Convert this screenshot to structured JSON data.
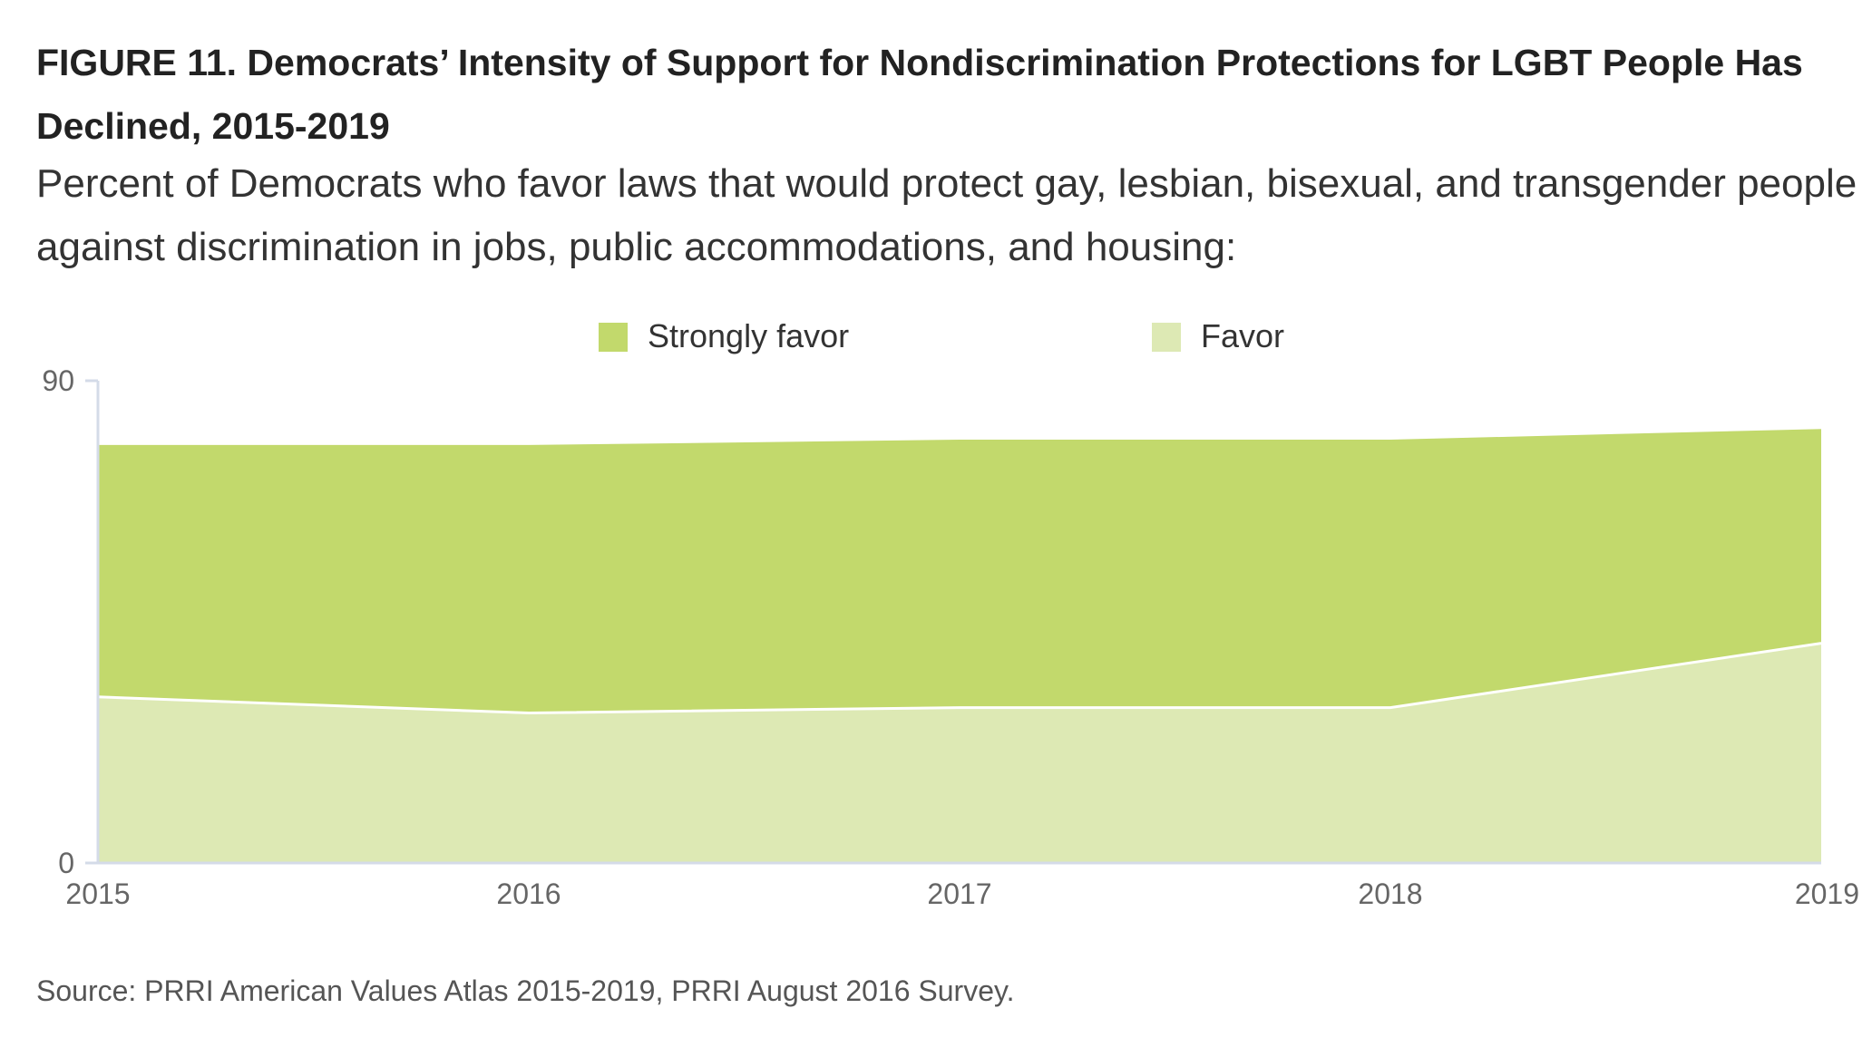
{
  "header": {
    "title": "FIGURE 11. Democrats’ Intensity of Support for Nondiscrimination Protections for LGBT People Has Declined, 2015-2019",
    "subtitle": "Percent of Democrats who favor laws that would protect gay, lesbian, bisexual, and transgender people against discrimination in jobs, public accommodations, and housing:"
  },
  "footer": {
    "source": "Source: PRRI American Values Atlas 2015-2019, PRRI August 2016 Survey."
  },
  "colors": {
    "strongly_favor": "#c2d96c",
    "favor": "#dde9b4",
    "axis": "#d4dbe8",
    "tick_text": "#666666"
  },
  "chart_data": {
    "type": "area",
    "stacked": true,
    "x": [
      "2015",
      "2016",
      "2017",
      "2018",
      "2019"
    ],
    "series": [
      {
        "name": "Favor",
        "values": [
          31,
          28,
          29,
          29,
          41
        ]
      },
      {
        "name": "Strongly favor",
        "values": [
          47,
          50,
          50,
          50,
          40
        ]
      }
    ],
    "legend": [
      "Strongly favor",
      "Favor"
    ],
    "legend_position": "top-center",
    "ylim": [
      0,
      90
    ],
    "yticks": [
      "0",
      "90"
    ],
    "grid": false
  }
}
